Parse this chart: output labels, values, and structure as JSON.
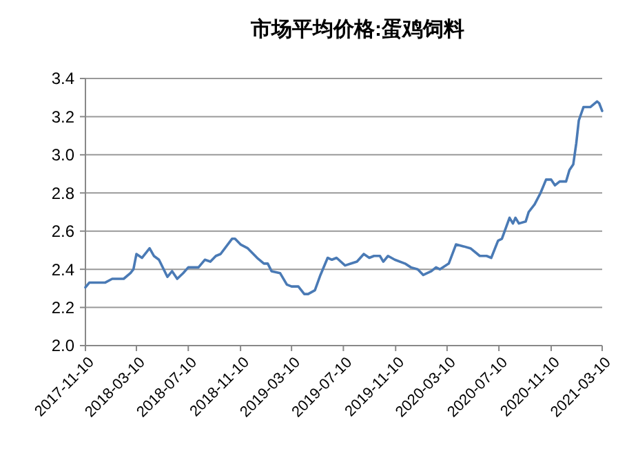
{
  "chart_data": {
    "type": "line",
    "title": "市场平均价格:蛋鸡饲料",
    "xlim": [
      "2017-11-10",
      "2021-03-10"
    ],
    "xticks": [
      "2017-11-10",
      "2018-03-10",
      "2018-07-10",
      "2018-11-10",
      "2019-03-10",
      "2019-07-10",
      "2019-11-10",
      "2020-03-10",
      "2020-07-10",
      "2020-11-10",
      "2021-03-10"
    ],
    "ylim": [
      2.0,
      3.4
    ],
    "yticks": [
      {
        "value": 2.0,
        "label": "2.0"
      },
      2.2,
      2.4,
      2.6,
      2.8,
      {
        "value": 3.0,
        "label": "3.0"
      },
      3.2,
      3.4
    ],
    "grid": "y",
    "line_style": "solid",
    "series": [
      {
        "color": "#4a7ab5",
        "x": [
          "2017-11-10",
          "2017-11-19",
          "2017-12-26",
          "2018-01-12",
          "2018-02-08",
          "2018-02-24",
          "2018-03-03",
          "2018-03-10",
          "2018-03-23",
          "2018-04-10",
          "2018-04-20",
          "2018-05-02",
          "2018-05-22",
          "2018-06-02",
          "2018-06-14",
          "2018-06-28",
          "2018-07-10",
          "2018-08-03",
          "2018-08-18",
          "2018-08-31",
          "2018-09-13",
          "2018-09-24",
          "2018-10-21",
          "2018-10-28",
          "2018-11-10",
          "2018-11-27",
          "2018-12-19",
          "2019-01-04",
          "2019-01-13",
          "2019-01-22",
          "2019-02-11",
          "2019-02-27",
          "2019-03-10",
          "2019-03-26",
          "2019-04-09",
          "2019-04-18",
          "2019-05-04",
          "2019-05-17",
          "2019-06-03",
          "2019-06-13",
          "2019-06-24",
          "2019-07-14",
          "2019-07-28",
          "2019-08-11",
          "2019-08-27",
          "2019-09-09",
          "2019-09-20",
          "2019-10-04",
          "2019-10-12",
          "2019-10-23",
          "2019-11-08",
          "2019-12-02",
          "2019-12-16",
          "2020-01-01",
          "2020-01-14",
          "2020-02-02",
          "2020-02-13",
          "2020-02-22",
          "2020-03-14",
          "2020-03-31",
          "2020-04-18",
          "2020-05-04",
          "2020-05-26",
          "2020-06-11",
          "2020-06-22",
          "2020-07-08",
          "2020-07-17",
          "2020-08-04",
          "2020-08-12",
          "2020-08-18",
          "2020-08-26",
          "2020-09-11",
          "2020-09-18",
          "2020-10-02",
          "2020-10-16",
          "2020-10-29",
          "2020-11-10",
          "2020-11-19",
          "2020-11-30",
          "2020-12-15",
          "2020-12-23",
          "2021-01-01",
          "2021-01-08",
          "2021-01-14",
          "2021-01-25",
          "2021-02-10",
          "2021-02-26",
          "2021-03-03",
          "2021-03-10"
        ],
        "values": [
          2.305,
          2.33,
          2.33,
          2.35,
          2.35,
          2.38,
          2.4,
          2.48,
          2.46,
          2.51,
          2.47,
          2.45,
          2.36,
          2.39,
          2.35,
          2.38,
          2.41,
          2.41,
          2.45,
          2.44,
          2.47,
          2.48,
          2.56,
          2.56,
          2.53,
          2.51,
          2.46,
          2.43,
          2.43,
          2.39,
          2.38,
          2.32,
          2.31,
          2.31,
          2.27,
          2.27,
          2.29,
          2.37,
          2.46,
          2.45,
          2.46,
          2.42,
          2.43,
          2.44,
          2.48,
          2.46,
          2.47,
          2.47,
          2.44,
          2.47,
          2.45,
          2.43,
          2.41,
          2.4,
          2.37,
          2.39,
          2.41,
          2.4,
          2.43,
          2.53,
          2.52,
          2.51,
          2.47,
          2.47,
          2.46,
          2.55,
          2.56,
          2.67,
          2.64,
          2.67,
          2.64,
          2.65,
          2.7,
          2.74,
          2.8,
          2.87,
          2.87,
          2.84,
          2.86,
          2.86,
          2.92,
          2.95,
          3.06,
          3.18,
          3.25,
          3.25,
          3.28,
          3.27,
          3.23
        ]
      }
    ]
  }
}
